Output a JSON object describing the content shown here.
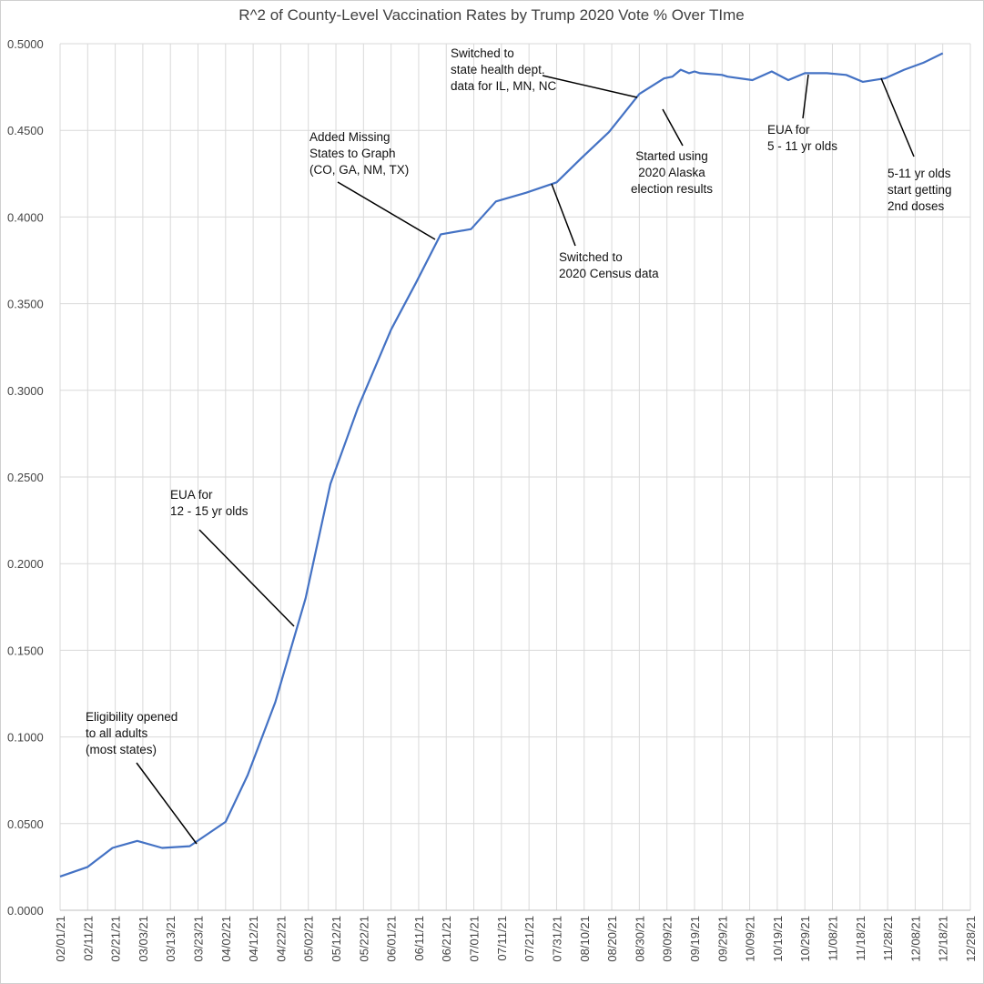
{
  "chart_data": {
    "type": "line",
    "title": "R^2 of County-Level Vaccination Rates by Trump 2020 Vote % Over TIme",
    "x": [
      "02/01/21",
      "02/11/21",
      "02/20/21",
      "03/01/21",
      "03/10/21",
      "03/20/21",
      "04/02/21",
      "04/10/21",
      "04/20/21",
      "05/01/21",
      "05/10/21",
      "05/20/21",
      "06/01/21",
      "06/10/21",
      "06/19/21",
      "06/30/21",
      "07/09/21",
      "07/20/21",
      "07/31/21",
      "08/09/21",
      "08/19/21",
      "08/30/21",
      "09/08/21",
      "09/11/21",
      "09/14/21",
      "09/17/21",
      "09/19/21",
      "09/21/21",
      "09/29/21",
      "10/01/21",
      "10/10/21",
      "10/17/21",
      "10/23/21",
      "10/29/21",
      "11/01/21",
      "11/06/21",
      "11/13/21",
      "11/19/21",
      "11/27/21",
      "12/04/21",
      "12/11/21",
      "12/18/21"
    ],
    "series": [
      {
        "name": "R^2",
        "color": "#4472c4",
        "values": [
          0.0195,
          0.025,
          0.036,
          0.04,
          0.036,
          0.037,
          0.051,
          0.078,
          0.12,
          0.18,
          0.246,
          0.29,
          0.335,
          0.362,
          0.39,
          0.393,
          0.409,
          0.414,
          0.42,
          0.434,
          0.449,
          0.471,
          0.48,
          0.481,
          0.485,
          0.483,
          0.484,
          0.483,
          0.482,
          0.481,
          0.479,
          0.484,
          0.479,
          0.483,
          0.483,
          0.483,
          0.482,
          0.478,
          0.48,
          0.485,
          0.489,
          0.4945
        ]
      }
    ],
    "xlim": [
      "02/01/21",
      "12/28/21"
    ],
    "xticks": [
      "02/01/21",
      "02/11/21",
      "02/21/21",
      "03/03/21",
      "03/13/21",
      "03/23/21",
      "04/02/21",
      "04/12/21",
      "04/22/21",
      "05/02/21",
      "05/12/21",
      "05/22/21",
      "06/01/21",
      "06/11/21",
      "06/21/21",
      "07/01/21",
      "07/11/21",
      "07/21/21",
      "07/31/21",
      "08/10/21",
      "08/20/21",
      "08/30/21",
      "09/09/21",
      "09/19/21",
      "09/29/21",
      "10/09/21",
      "10/19/21",
      "10/29/21",
      "11/08/21",
      "11/18/21",
      "11/28/21",
      "12/08/21",
      "12/18/21",
      "12/28/21"
    ],
    "ylim": [
      0,
      0.5
    ],
    "yticks": [
      {
        "value": 0,
        "label": "0.0000"
      },
      {
        "value": 0.05,
        "label": "0.0500"
      },
      {
        "value": 0.1,
        "label": "0.1000"
      },
      {
        "value": 0.15,
        "label": "0.1500"
      },
      {
        "value": 0.2,
        "label": "0.2000"
      },
      {
        "value": 0.25,
        "label": "0.2500"
      },
      {
        "value": 0.3,
        "label": "0.3000"
      },
      {
        "value": 0.35,
        "label": "0.3500"
      },
      {
        "value": 0.4,
        "label": "0.4000"
      },
      {
        "value": 0.45,
        "label": "0.4500"
      },
      {
        "value": 0.5,
        "label": "0.5000"
      }
    ],
    "grid": true,
    "annotations": [
      {
        "lines": [
          "Eligibility opened",
          "to all adults",
          "(most states)"
        ]
      },
      {
        "lines": [
          "EUA for",
          "12 - 15 yr olds"
        ]
      },
      {
        "lines": [
          "Added Missing",
          "States to Graph",
          "(CO, GA, NM, TX)"
        ]
      },
      {
        "lines": [
          "Switched to",
          "state health dept.",
          "data for IL, MN, NC"
        ]
      },
      {
        "lines": [
          "Started using",
          "2020 Alaska",
          "election results"
        ]
      },
      {
        "lines": [
          "Switched to",
          "2020 Census data"
        ]
      },
      {
        "lines": [
          "EUA for",
          "5 - 11 yr olds"
        ]
      },
      {
        "lines": [
          "5-11 yr olds",
          "start getting",
          "2nd doses"
        ]
      }
    ]
  }
}
